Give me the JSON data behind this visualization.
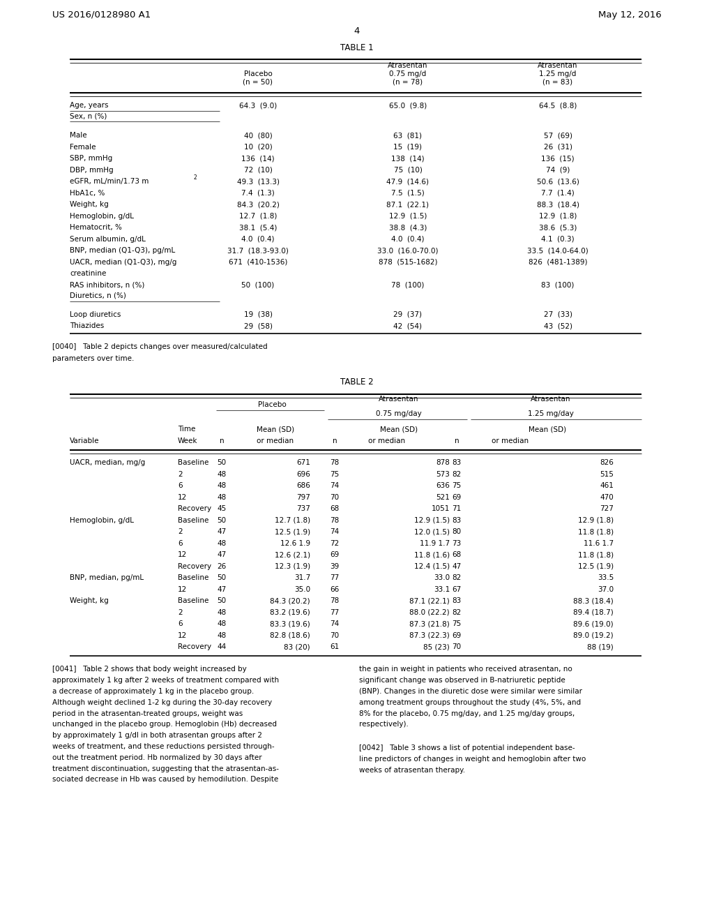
{
  "header_left": "US 2016/0128980 A1",
  "header_right": "May 12, 2016",
  "page_number": "4",
  "table1_title": "TABLE 1",
  "table1_rows": [
    [
      "Age, years",
      "64.3  (9.0)",
      "65.0  (9.8)",
      "64.5  (8.8)"
    ],
    [
      "Sex, n (%)",
      "",
      "",
      ""
    ],
    [
      "",
      "",
      "",
      ""
    ],
    [
      "Male",
      "40  (80)",
      "63  (81)",
      "57  (69)"
    ],
    [
      "Female",
      "10  (20)",
      "15  (19)",
      "26  (31)"
    ],
    [
      "SBP, mmHg",
      "136  (14)",
      "138  (14)",
      "136  (15)"
    ],
    [
      "DBP, mmHg",
      "72  (10)",
      "75  (10)",
      "74  (9)"
    ],
    [
      "eGFR",
      "49.3  (13.3)",
      "47.9  (14.6)",
      "50.6  (13.6)"
    ],
    [
      "HbA1c, %",
      "7.4  (1.3)",
      "7.5  (1.5)",
      "7.7  (1.4)"
    ],
    [
      "Weight, kg",
      "84.3  (20.2)",
      "87.1  (22.1)",
      "88.3  (18.4)"
    ],
    [
      "Hemoglobin, g/dL",
      "12.7  (1.8)",
      "12.9  (1.5)",
      "12.9  (1.8)"
    ],
    [
      "Hematocrit, %",
      "38.1  (5.4)",
      "38.8  (4.3)",
      "38.6  (5.3)"
    ],
    [
      "Serum albumin, g/dL",
      "4.0  (0.4)",
      "4.0  (0.4)",
      "4.1  (0.3)"
    ],
    [
      "BNP, median (Q1-Q3), pg/mL",
      "31.7  (18.3-93.0)",
      "33.0  (16.0-70.0)",
      "33.5  (14.0-64.0)"
    ],
    [
      "UACR, median (Q1-Q3), mg/g",
      "671  (410-1536)",
      "878  (515-1682)",
      "826  (481-1389)"
    ],
    [
      "creatinine",
      "",
      "",
      ""
    ],
    [
      "RAS inhibitors, n (%)",
      "50  (100)",
      "78  (100)",
      "83  (100)"
    ],
    [
      "Diuretics, n (%)",
      "",
      "",
      ""
    ],
    [
      "",
      "",
      "",
      ""
    ],
    [
      "Loop diuretics",
      "19  (38)",
      "29  (37)",
      "27  (33)"
    ],
    [
      "Thiazides",
      "29  (58)",
      "42  (54)",
      "43  (52)"
    ]
  ],
  "para0040": "[0040]   Table 2 depicts changes over measured/calculated\nparameters over time.",
  "table2_title": "TABLE 2",
  "table2_rows": [
    [
      "UACR, median, mg/g",
      "Baseline",
      "50",
      "671",
      "78",
      "878",
      "83",
      "826"
    ],
    [
      "",
      "2",
      "48",
      "696",
      "75",
      "573",
      "82",
      "515"
    ],
    [
      "",
      "6",
      "48",
      "686",
      "74",
      "636",
      "75",
      "461"
    ],
    [
      "",
      "12",
      "48",
      "797",
      "70",
      "521",
      "69",
      "470"
    ],
    [
      "",
      "Recovery",
      "45",
      "737",
      "68",
      "1051",
      "71",
      "727"
    ],
    [
      "Hemoglobin, g/dL",
      "Baseline",
      "50",
      "12.7 (1.8)",
      "78",
      "12.9 (1.5)",
      "83",
      "12.9 (1.8)"
    ],
    [
      "",
      "2",
      "47",
      "12.5 (1.9)",
      "74",
      "12.0 (1.5)",
      "80",
      "11.8 (1.8)"
    ],
    [
      "",
      "6",
      "48",
      "12.6 1.9",
      "72",
      "11.9 1.7",
      "73",
      "11.6 1.7"
    ],
    [
      "",
      "12",
      "47",
      "12.6 (2.1)",
      "69",
      "11.8 (1.6)",
      "68",
      "11.8 (1.8)"
    ],
    [
      "",
      "Recovery",
      "26",
      "12.3 (1.9)",
      "39",
      "12.4 (1.5)",
      "47",
      "12.5 (1.9)"
    ],
    [
      "BNP, median, pg/mL",
      "Baseline",
      "50",
      "31.7",
      "77",
      "33.0",
      "82",
      "33.5"
    ],
    [
      "",
      "12",
      "47",
      "35.0",
      "66",
      "33.1",
      "67",
      "37.0"
    ],
    [
      "Weight, kg",
      "Baseline",
      "50",
      "84.3 (20.2)",
      "78",
      "87.1 (22.1)",
      "83",
      "88.3 (18.4)"
    ],
    [
      "",
      "2",
      "48",
      "83.2 (19.6)",
      "77",
      "88.0 (22.2)",
      "82",
      "89.4 (18.7)"
    ],
    [
      "",
      "6",
      "48",
      "83.3 (19.6)",
      "74",
      "87.3 (21.8)",
      "75",
      "89.6 (19.0)"
    ],
    [
      "",
      "12",
      "48",
      "82.8 (18.6)",
      "70",
      "87.3 (22.3)",
      "69",
      "89.0 (19.2)"
    ],
    [
      "",
      "Recovery",
      "44",
      "83 (20)",
      "61",
      "85 (23)",
      "70",
      "88 (19)"
    ]
  ],
  "para0041_left": "[0041]   Table 2 shows that body weight increased by\napproximately 1 kg after 2 weeks of treatment compared with\na decrease of approximately 1 kg in the placebo group.\nAlthough weight declined 1-2 kg during the 30-day recovery\nperiod in the atrasentan-treated groups, weight was\nunchanged in the placebo group. Hemoglobin (Hb) decreased\nby approximately 1 g/dl in both atrasentan groups after 2\nweeks of treatment, and these reductions persisted through-\nout the treatment period. Hb normalized by 30 days after\ntreatment discontinuation, suggesting that the atrasentan-as-\nsociated decrease in Hb was caused by hemodilution. Despite",
  "para0041_right": "the gain in weight in patients who received atrasentan, no\nsignificant change was observed in B-natriuretic peptide\n(BNP). Changes in the diuretic dose were similar were similar\namong treatment groups throughout the study (4%, 5%, and\n8% for the placebo, 0.75 mg/day, and 1.25 mg/day groups,\nrespectively).",
  "para0042": "[0042]   Table 3 shows a list of potential independent base-\nline predictors of changes in weight and hemoglobin after two\nweeks of atrasentan therapy.",
  "bg_color": "#ffffff",
  "text_color": "#000000"
}
